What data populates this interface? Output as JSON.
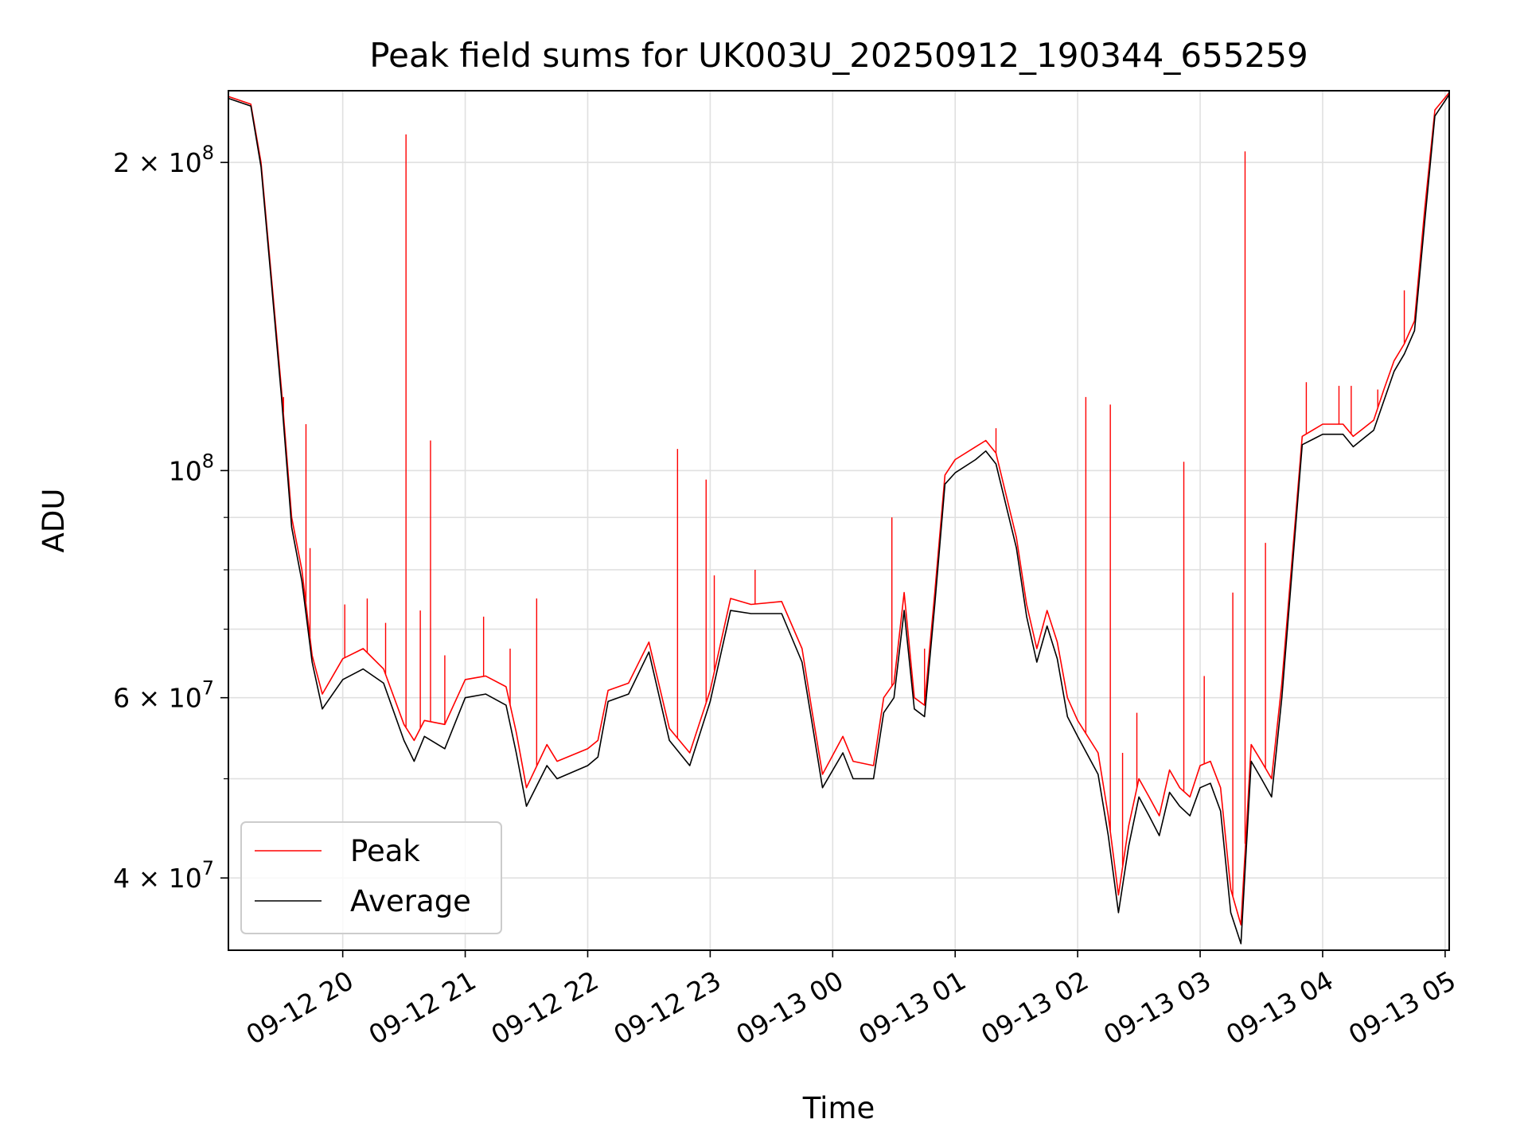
{
  "chart_data": {
    "type": "line",
    "title": "Peak field sums for UK003U_20250912_190344_655259",
    "xlabel": "Time",
    "ylabel": "ADU",
    "yscale": "log",
    "ylim": [
      34000000,
      235000000
    ],
    "xlim": [
      "2025-09-12 19:04",
      "2025-09-13 05:02"
    ],
    "grid": true,
    "legend_position": "lower left",
    "x_ticks": [
      "09-12 20",
      "09-12 21",
      "09-12 22",
      "09-12 23",
      "09-13 00",
      "09-13 01",
      "09-13 02",
      "09-13 03",
      "09-13 04",
      "09-13 05"
    ],
    "y_ticks": [
      {
        "value": 40000000,
        "mantissa": "4",
        "exponent": "7"
      },
      {
        "value": 60000000,
        "mantissa": "6",
        "exponent": "7"
      },
      {
        "value": 100000000,
        "mantissa": "",
        "exponent": "8"
      },
      {
        "value": 200000000,
        "mantissa": "2",
        "exponent": "8"
      }
    ],
    "y_tick_base": "10",
    "y_tick_times": "×",
    "x": [
      "2025-09-12 19:04",
      "2025-09-12 19:15",
      "2025-09-12 19:20",
      "2025-09-12 19:25",
      "2025-09-12 19:30",
      "2025-09-12 19:35",
      "2025-09-12 19:40",
      "2025-09-12 19:45",
      "2025-09-12 19:50",
      "2025-09-12 20:00",
      "2025-09-12 20:10",
      "2025-09-12 20:20",
      "2025-09-12 20:30",
      "2025-09-12 20:35",
      "2025-09-12 20:40",
      "2025-09-12 20:50",
      "2025-09-12 21:00",
      "2025-09-12 21:10",
      "2025-09-12 21:20",
      "2025-09-12 21:25",
      "2025-09-12 21:30",
      "2025-09-12 21:40",
      "2025-09-12 21:45",
      "2025-09-12 22:00",
      "2025-09-12 22:05",
      "2025-09-12 22:10",
      "2025-09-12 22:20",
      "2025-09-12 22:30",
      "2025-09-12 22:40",
      "2025-09-12 22:50",
      "2025-09-12 23:00",
      "2025-09-12 23:10",
      "2025-09-12 23:20",
      "2025-09-12 23:35",
      "2025-09-12 23:45",
      "2025-09-12 23:50",
      "2025-09-12 23:55",
      "2025-09-13 00:05",
      "2025-09-13 00:10",
      "2025-09-13 00:20",
      "2025-09-13 00:25",
      "2025-09-13 00:30",
      "2025-09-13 00:35",
      "2025-09-13 00:40",
      "2025-09-13 00:45",
      "2025-09-13 00:50",
      "2025-09-13 00:55",
      "2025-09-13 01:00",
      "2025-09-13 01:10",
      "2025-09-13 01:15",
      "2025-09-13 01:20",
      "2025-09-13 01:30",
      "2025-09-13 01:35",
      "2025-09-13 01:40",
      "2025-09-13 01:45",
      "2025-09-13 01:50",
      "2025-09-13 01:55",
      "2025-09-13 02:00",
      "2025-09-13 02:10",
      "2025-09-13 02:15",
      "2025-09-13 02:20",
      "2025-09-13 02:25",
      "2025-09-13 02:30",
      "2025-09-13 02:35",
      "2025-09-13 02:40",
      "2025-09-13 02:45",
      "2025-09-13 02:50",
      "2025-09-13 02:55",
      "2025-09-13 03:00",
      "2025-09-13 03:05",
      "2025-09-13 03:10",
      "2025-09-13 03:15",
      "2025-09-13 03:20",
      "2025-09-13 03:25",
      "2025-09-13 03:30",
      "2025-09-13 03:35",
      "2025-09-13 03:40",
      "2025-09-13 03:50",
      "2025-09-13 04:00",
      "2025-09-13 04:10",
      "2025-09-13 04:15",
      "2025-09-13 04:20",
      "2025-09-13 04:25",
      "2025-09-13 04:30",
      "2025-09-13 04:35",
      "2025-09-13 04:40",
      "2025-09-13 04:45",
      "2025-09-13 04:50",
      "2025-09-13 04:55",
      "2025-09-13 05:02"
    ],
    "series": [
      {
        "name": "Peak",
        "color": "#ff0000",
        "values": [
          232000000,
          228000000,
          200000000,
          155000000,
          120000000,
          90000000,
          80000000,
          66000000,
          60500000,
          65500000,
          67000000,
          64000000,
          56500000,
          54500000,
          57000000,
          56500000,
          62500000,
          63000000,
          61500000,
          55500000,
          49000000,
          54000000,
          52000000,
          53500000,
          54500000,
          61000000,
          62000000,
          68000000,
          56000000,
          53000000,
          61000000,
          75000000,
          74000000,
          74500000,
          67000000,
          58000000,
          50500000,
          55000000,
          52000000,
          51500000,
          60000000,
          62000000,
          76000000,
          60000000,
          59000000,
          76000000,
          99000000,
          102500000,
          105500000,
          107000000,
          104000000,
          86000000,
          74000000,
          67000000,
          73000000,
          68000000,
          60000000,
          57000000,
          53000000,
          46000000,
          38500000,
          45000000,
          50000000,
          48000000,
          46000000,
          51000000,
          49000000,
          48000000,
          51500000,
          52000000,
          49000000,
          39000000,
          36000000,
          54000000,
          52000000,
          50000000,
          62000000,
          108000000,
          111000000,
          111000000,
          108000000,
          110000000,
          112000000,
          120000000,
          128000000,
          133000000,
          140000000,
          180000000,
          225000000,
          234000000
        ]
      },
      {
        "name": "Average",
        "color": "#000000",
        "values": [
          231000000,
          227000000,
          198000000,
          153000000,
          118000000,
          88000000,
          78000000,
          65000000,
          58500000,
          62500000,
          64000000,
          62000000,
          54500000,
          52000000,
          55000000,
          53500000,
          60000000,
          60500000,
          59000000,
          53000000,
          47000000,
          51500000,
          50000000,
          51500000,
          52500000,
          59500000,
          60500000,
          66500000,
          54500000,
          51500000,
          59500000,
          73000000,
          72500000,
          72500000,
          65000000,
          56500000,
          49000000,
          53000000,
          50000000,
          50000000,
          58000000,
          60000000,
          73000000,
          58500000,
          57500000,
          74000000,
          97000000,
          99500000,
          102500000,
          104500000,
          101500000,
          84000000,
          72000000,
          65000000,
          70500000,
          65500000,
          57500000,
          55000000,
          50500000,
          44000000,
          37000000,
          43000000,
          48000000,
          46000000,
          44000000,
          48500000,
          47000000,
          46000000,
          49000000,
          49500000,
          46500000,
          37000000,
          34500000,
          52000000,
          50000000,
          48000000,
          60000000,
          106000000,
          108500000,
          108500000,
          105500000,
          107500000,
          109500000,
          117000000,
          125000000,
          130000000,
          137000000,
          175000000,
          222000000,
          233000000
        ]
      }
    ],
    "spikes": {
      "series": "Peak",
      "x": [
        "2025-09-12 19:31",
        "2025-09-12 19:42",
        "2025-09-12 19:44",
        "2025-09-12 20:01",
        "2025-09-12 20:12",
        "2025-09-12 20:21",
        "2025-09-12 20:31",
        "2025-09-12 20:38",
        "2025-09-12 20:43",
        "2025-09-12 20:50",
        "2025-09-12 21:09",
        "2025-09-12 21:22",
        "2025-09-12 21:35",
        "2025-09-12 22:44",
        "2025-09-12 22:58",
        "2025-09-12 23:02",
        "2025-09-12 23:22",
        "2025-09-13 00:29",
        "2025-09-13 00:45",
        "2025-09-13 01:20",
        "2025-09-13 02:04",
        "2025-09-13 02:16",
        "2025-09-13 02:22",
        "2025-09-13 02:29",
        "2025-09-13 02:52",
        "2025-09-13 03:02",
        "2025-09-13 03:16",
        "2025-09-13 03:22",
        "2025-09-13 03:32",
        "2025-09-13 03:52",
        "2025-09-13 04:08",
        "2025-09-13 04:14",
        "2025-09-13 04:27",
        "2025-09-13 04:40"
      ],
      "values": [
        118000000,
        111000000,
        84000000,
        74000000,
        75000000,
        71000000,
        213000000,
        73000000,
        107000000,
        66000000,
        72000000,
        67000000,
        75000000,
        105000000,
        98000000,
        79000000,
        80000000,
        90000000,
        67000000,
        110000000,
        118000000,
        116000000,
        53000000,
        58000000,
        102000000,
        63000000,
        76000000,
        205000000,
        85000000,
        122000000,
        121000000,
        121000000,
        120000000,
        150000000
      ]
    }
  }
}
